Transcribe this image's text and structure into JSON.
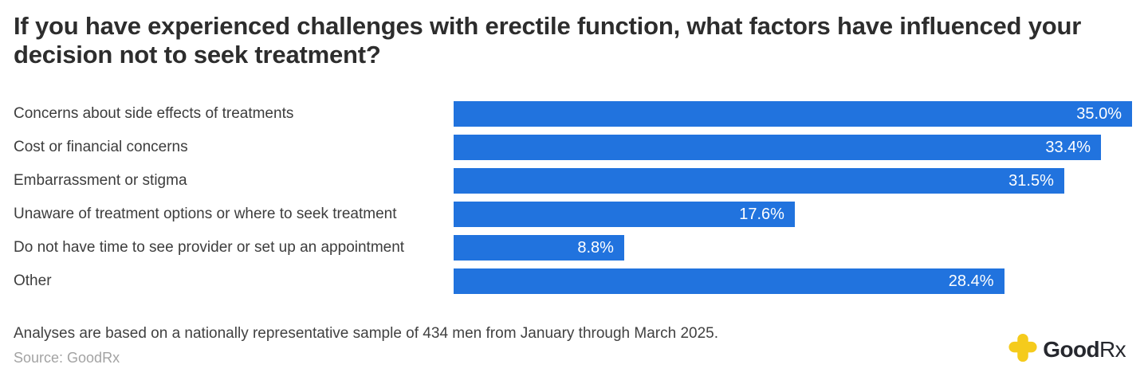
{
  "title": "If you have experienced challenges with erectile function, what factors have influenced your decision not to seek treatment?",
  "chart_data": {
    "type": "bar",
    "orientation": "horizontal",
    "title": "If you have experienced challenges with erectile function, what factors have influenced your decision not to seek treatment?",
    "categories": [
      "Concerns about side effects of treatments",
      "Cost or financial concerns",
      "Embarrassment or stigma",
      "Unaware of treatment options or where to seek treatment",
      "Do not have time to see provider or set up an appointment",
      "Other"
    ],
    "values": [
      35.0,
      33.4,
      31.5,
      17.6,
      8.8,
      28.4
    ],
    "value_labels": [
      "35.0%",
      "33.4%",
      "31.5%",
      "17.6%",
      "8.8%",
      "28.4%"
    ],
    "xlabel": "",
    "ylabel": "",
    "xlim": [
      0,
      35.0
    ],
    "grid": false,
    "legend": false,
    "bar_color": "#2173de",
    "value_label_color": "#ffffff",
    "value_label_position": "inside-end"
  },
  "footer": {
    "note": "Analyses are based on a nationally representative sample of 434 men from January through March 2025.",
    "source": "Source: GoodRx"
  },
  "logo": {
    "brand_good": "Good",
    "brand_rx": "Rx",
    "cross_icon": "goodrx-cross-icon",
    "cross_color": "#f5cb1c",
    "text_color": "#26282e"
  },
  "colors": {
    "background": "#ffffff",
    "title_text": "#2d2d2d",
    "category_text": "#3d3d3d",
    "note_text": "#414141",
    "source_text": "#a3a3a3"
  }
}
